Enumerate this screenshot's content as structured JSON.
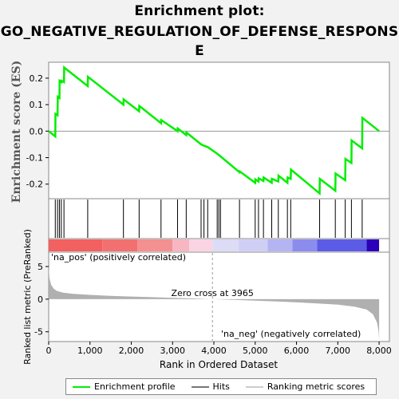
{
  "title_line1": "Enrichment plot:",
  "title_line2": "GO_NEGATIVE_REGULATION_OF_DEFENSE_RESPONS",
  "title_line3": "E",
  "colors": {
    "es_line": "#00ee00",
    "hits": "#000000",
    "metric": "#b0b0b0",
    "pos_label": "#cc0000",
    "neg_label": "#0000cc"
  },
  "legend": {
    "es": "Enrichment profile",
    "hits": "Hits",
    "metric": "Ranking metric scores"
  },
  "chart_data": {
    "type": "line",
    "xlabel": "Rank in Ordered Dataset",
    "ylabel_top": "Enrichment score (ES)",
    "ylabel_bottom": "Ranked list metric (PreRanked)",
    "xlim": [
      0,
      8250
    ],
    "es_ylim": [
      -0.255,
      0.26
    ],
    "metric_ylim": [
      -6.5,
      7.2
    ],
    "x_ticks": [
      "0",
      "1,000",
      "2,000",
      "3,000",
      "4,000",
      "5,000",
      "6,000",
      "7,000",
      "8,000"
    ],
    "x_tick_values": [
      0,
      1000,
      2000,
      3000,
      4000,
      5000,
      6000,
      7000,
      8000
    ],
    "es_ticks": [
      "0.2",
      "0.1",
      "0.0",
      "-0.1",
      "-0.2"
    ],
    "es_tick_values": [
      0.2,
      0.1,
      0.0,
      -0.1,
      -0.2
    ],
    "metric_ticks": [
      "5",
      "0",
      "-5"
    ],
    "metric_tick_values": [
      5,
      0,
      -5
    ],
    "zero_cross_label": "Zero cross at 3965",
    "zero_cross": 3965,
    "pos_label": "'na_pos' (positively correlated)",
    "neg_label": "'na_neg' (negatively correlated)",
    "hits": [
      160,
      215,
      260,
      305,
      370,
      945,
      1810,
      2190,
      2720,
      3120,
      3330,
      3690,
      3760,
      3850,
      4080,
      4120,
      4160,
      4620,
      5000,
      5080,
      5200,
      5400,
      5560,
      5780,
      5860,
      6560,
      6940,
      7180,
      7330,
      7590
    ],
    "es_profile": [
      [
        0,
        0.0
      ],
      [
        160,
        -0.02
      ],
      [
        165,
        0.065
      ],
      [
        215,
        0.06
      ],
      [
        220,
        0.13
      ],
      [
        260,
        0.125
      ],
      [
        265,
        0.19
      ],
      [
        305,
        0.185
      ],
      [
        310,
        0.19
      ],
      [
        370,
        0.185
      ],
      [
        375,
        0.24
      ],
      [
        945,
        0.17
      ],
      [
        950,
        0.205
      ],
      [
        1810,
        0.1
      ],
      [
        1815,
        0.12
      ],
      [
        2190,
        0.075
      ],
      [
        2195,
        0.095
      ],
      [
        2720,
        0.03
      ],
      [
        2725,
        0.042
      ],
      [
        3120,
        0.0
      ],
      [
        3125,
        0.01
      ],
      [
        3330,
        -0.015
      ],
      [
        3335,
        -0.005
      ],
      [
        3690,
        -0.05
      ],
      [
        3760,
        -0.055
      ],
      [
        3850,
        -0.06
      ],
      [
        4080,
        -0.085
      ],
      [
        4160,
        -0.095
      ],
      [
        4620,
        -0.155
      ],
      [
        4625,
        -0.152
      ],
      [
        5000,
        -0.195
      ],
      [
        5005,
        -0.182
      ],
      [
        5080,
        -0.19
      ],
      [
        5085,
        -0.178
      ],
      [
        5200,
        -0.188
      ],
      [
        5205,
        -0.175
      ],
      [
        5400,
        -0.195
      ],
      [
        5405,
        -0.18
      ],
      [
        5560,
        -0.19
      ],
      [
        5565,
        -0.168
      ],
      [
        5780,
        -0.195
      ],
      [
        5785,
        -0.175
      ],
      [
        5860,
        -0.18
      ],
      [
        5865,
        -0.145
      ],
      [
        6560,
        -0.235
      ],
      [
        6565,
        -0.18
      ],
      [
        6940,
        -0.225
      ],
      [
        6945,
        -0.16
      ],
      [
        7180,
        -0.185
      ],
      [
        7185,
        -0.105
      ],
      [
        7330,
        -0.12
      ],
      [
        7335,
        -0.035
      ],
      [
        7590,
        -0.065
      ],
      [
        7595,
        0.05
      ],
      [
        8000,
        0.0
      ]
    ],
    "metric_profile": [
      [
        0,
        5.0
      ],
      [
        20,
        3.2
      ],
      [
        60,
        2.2
      ],
      [
        120,
        1.6
      ],
      [
        200,
        1.25
      ],
      [
        350,
        1.0
      ],
      [
        600,
        0.8
      ],
      [
        1000,
        0.65
      ],
      [
        1500,
        0.5
      ],
      [
        2000,
        0.4
      ],
      [
        2500,
        0.3
      ],
      [
        3000,
        0.2
      ],
      [
        3500,
        0.1
      ],
      [
        3965,
        0.0
      ],
      [
        4500,
        -0.12
      ],
      [
        5000,
        -0.22
      ],
      [
        5500,
        -0.35
      ],
      [
        6000,
        -0.5
      ],
      [
        6500,
        -0.65
      ],
      [
        7000,
        -0.85
      ],
      [
        7400,
        -1.15
      ],
      [
        7700,
        -1.6
      ],
      [
        7850,
        -2.3
      ],
      [
        7950,
        -3.6
      ],
      [
        7990,
        -5.0
      ],
      [
        8000,
        -6.3
      ]
    ],
    "heat_bands": [
      [
        0,
        1300,
        "#f26060"
      ],
      [
        1300,
        2150,
        "#f27070"
      ],
      [
        2150,
        3000,
        "#f49090"
      ],
      [
        3000,
        3400,
        "#f7b6c2"
      ],
      [
        3400,
        3965,
        "#fad4e2"
      ],
      [
        3965,
        4600,
        "#dcdcf7"
      ],
      [
        4600,
        5300,
        "#cfcff6"
      ],
      [
        5300,
        5900,
        "#b4b4f2"
      ],
      [
        5900,
        6500,
        "#8c8cef"
      ],
      [
        6500,
        7700,
        "#5b5be5"
      ],
      [
        7700,
        8000,
        "#2b00b8"
      ]
    ]
  }
}
